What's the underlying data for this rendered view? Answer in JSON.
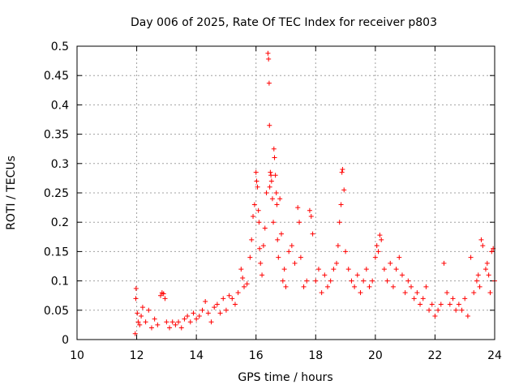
{
  "chart_data": {
    "type": "scatter",
    "title": "Day 006 of 2025, Rate Of TEC Index for receiver p803",
    "xlabel": "GPS time / hours",
    "ylabel": "ROTI / TECUs",
    "xlim": [
      10,
      24
    ],
    "ylim": [
      0,
      0.5
    ],
    "xticks": [
      10,
      12,
      14,
      16,
      18,
      20,
      22,
      24
    ],
    "xtick_labels": [
      "10",
      "12",
      "14",
      "16",
      "18",
      "20",
      "22",
      "24"
    ],
    "yticks": [
      0,
      0.05,
      0.1,
      0.15,
      0.2,
      0.25,
      0.3,
      0.35,
      0.4,
      0.45,
      0.5
    ],
    "ytick_labels": [
      "0",
      "0.05",
      "0.1",
      "0.15",
      "0.2",
      "0.25",
      "0.3",
      "0.35",
      "0.4",
      "0.45",
      "0.5"
    ],
    "grid": true,
    "marker": "+",
    "color": "#ff0000",
    "x": [
      11.95,
      11.97,
      11.98,
      12.02,
      12.05,
      12.1,
      12.15,
      12.2,
      12.3,
      12.4,
      12.5,
      12.6,
      12.7,
      12.8,
      12.85,
      12.9,
      12.95,
      13.0,
      13.1,
      13.2,
      13.3,
      13.4,
      13.5,
      13.6,
      13.7,
      13.8,
      13.9,
      14.0,
      14.1,
      14.2,
      14.3,
      14.4,
      14.5,
      14.6,
      14.7,
      14.8,
      14.9,
      15.0,
      15.1,
      15.2,
      15.3,
      15.4,
      15.5,
      15.55,
      15.6,
      15.7,
      15.8,
      15.85,
      15.9,
      15.95,
      16.0,
      16.02,
      16.05,
      16.08,
      16.1,
      16.12,
      16.15,
      16.2,
      16.25,
      16.3,
      16.35,
      16.4,
      16.42,
      16.44,
      16.45,
      16.46,
      16.48,
      16.5,
      16.52,
      16.55,
      16.58,
      16.6,
      16.62,
      16.65,
      16.68,
      16.7,
      16.72,
      16.75,
      16.8,
      16.85,
      16.9,
      16.95,
      17.0,
      17.1,
      17.2,
      17.3,
      17.4,
      17.45,
      17.5,
      17.6,
      17.7,
      17.8,
      17.85,
      17.9,
      18.0,
      18.1,
      18.2,
      18.3,
      18.4,
      18.5,
      18.6,
      18.7,
      18.75,
      18.8,
      18.85,
      18.88,
      18.9,
      18.95,
      19.0,
      19.1,
      19.2,
      19.3,
      19.4,
      19.5,
      19.6,
      19.7,
      19.8,
      19.9,
      20.0,
      20.05,
      20.1,
      20.15,
      20.2,
      20.3,
      20.4,
      20.5,
      20.6,
      20.7,
      20.8,
      20.9,
      21.0,
      21.1,
      21.2,
      21.3,
      21.4,
      21.5,
      21.6,
      21.7,
      21.8,
      21.9,
      22.0,
      22.1,
      22.2,
      22.3,
      22.4,
      22.5,
      22.6,
      22.7,
      22.8,
      22.9,
      23.0,
      23.1,
      23.2,
      23.3,
      23.4,
      23.45,
      23.5,
      23.55,
      23.6,
      23.7,
      23.75,
      23.8,
      23.85,
      23.9,
      23.95,
      24.0
    ],
    "y": [
      0.01,
      0.07,
      0.087,
      0.045,
      0.03,
      0.025,
      0.04,
      0.055,
      0.03,
      0.05,
      0.02,
      0.035,
      0.025,
      0.075,
      0.08,
      0.078,
      0.07,
      0.03,
      0.02,
      0.03,
      0.025,
      0.03,
      0.02,
      0.035,
      0.04,
      0.03,
      0.045,
      0.035,
      0.04,
      0.05,
      0.065,
      0.045,
      0.03,
      0.055,
      0.06,
      0.045,
      0.07,
      0.05,
      0.075,
      0.07,
      0.06,
      0.08,
      0.12,
      0.105,
      0.09,
      0.095,
      0.14,
      0.17,
      0.21,
      0.23,
      0.285,
      0.27,
      0.26,
      0.22,
      0.2,
      0.155,
      0.13,
      0.11,
      0.16,
      0.19,
      0.25,
      0.488,
      0.478,
      0.437,
      0.365,
      0.26,
      0.285,
      0.28,
      0.27,
      0.24,
      0.2,
      0.325,
      0.31,
      0.28,
      0.25,
      0.23,
      0.17,
      0.14,
      0.24,
      0.18,
      0.1,
      0.12,
      0.09,
      0.15,
      0.16,
      0.13,
      0.225,
      0.2,
      0.14,
      0.09,
      0.1,
      0.22,
      0.21,
      0.18,
      0.1,
      0.12,
      0.08,
      0.11,
      0.09,
      0.1,
      0.12,
      0.13,
      0.16,
      0.2,
      0.23,
      0.285,
      0.29,
      0.255,
      0.15,
      0.12,
      0.1,
      0.09,
      0.11,
      0.08,
      0.1,
      0.12,
      0.09,
      0.1,
      0.14,
      0.16,
      0.15,
      0.178,
      0.17,
      0.12,
      0.1,
      0.13,
      0.09,
      0.12,
      0.14,
      0.11,
      0.08,
      0.1,
      0.09,
      0.07,
      0.08,
      0.06,
      0.07,
      0.09,
      0.05,
      0.06,
      0.04,
      0.05,
      0.06,
      0.13,
      0.08,
      0.06,
      0.07,
      0.05,
      0.06,
      0.05,
      0.07,
      0.04,
      0.14,
      0.08,
      0.1,
      0.11,
      0.09,
      0.17,
      0.16,
      0.12,
      0.13,
      0.11,
      0.08,
      0.15,
      0.155,
      0.1
    ]
  }
}
